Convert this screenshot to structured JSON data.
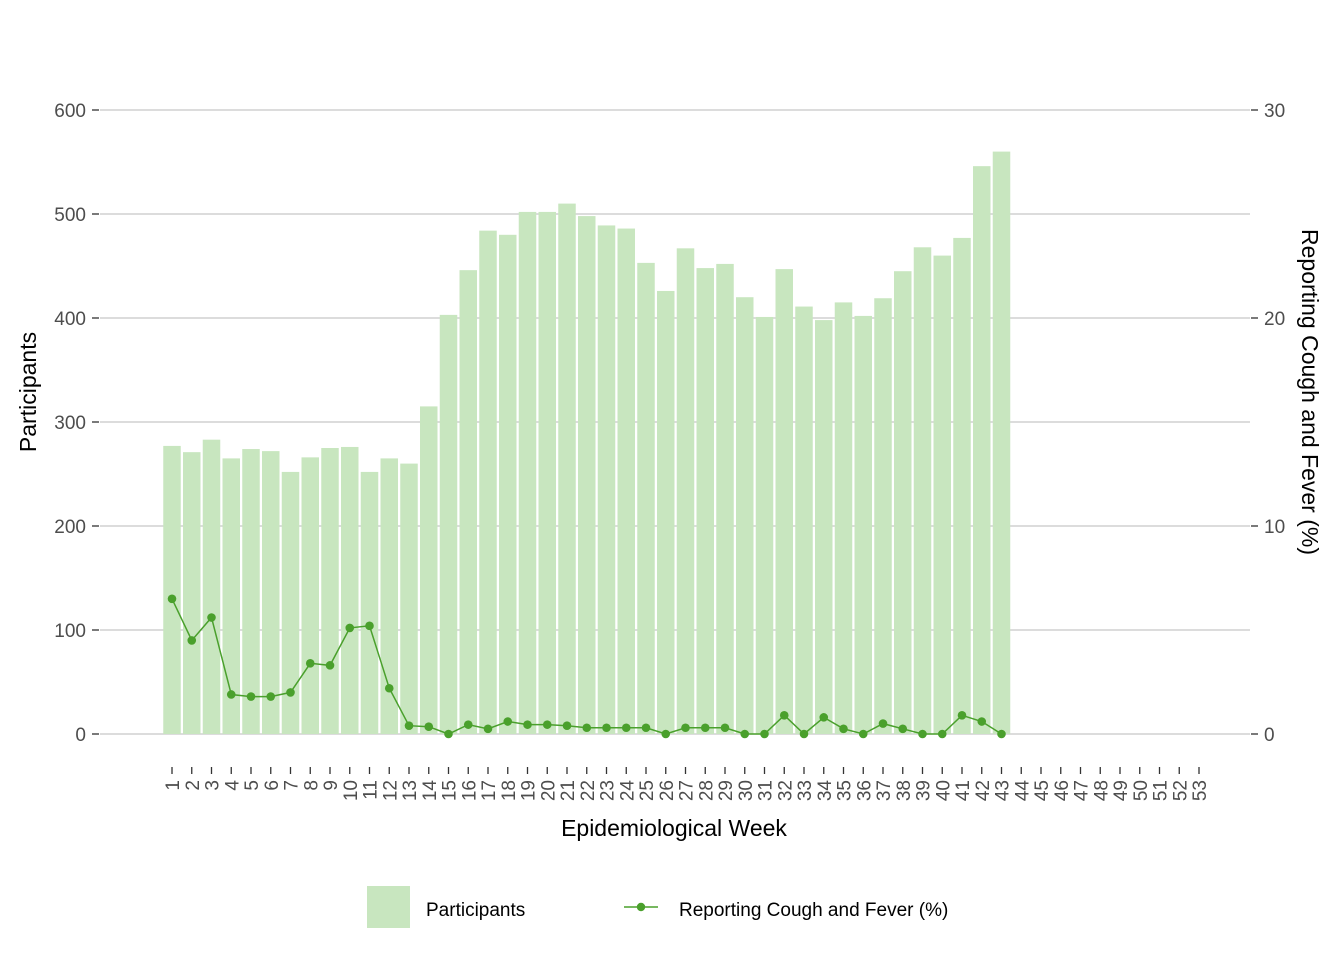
{
  "chart_data": {
    "type": "bar",
    "categories": [
      "1",
      "2",
      "3",
      "4",
      "5",
      "6",
      "7",
      "8",
      "9",
      "10",
      "11",
      "12",
      "13",
      "14",
      "15",
      "16",
      "17",
      "18",
      "19",
      "20",
      "21",
      "22",
      "23",
      "24",
      "25",
      "26",
      "27",
      "28",
      "29",
      "30",
      "31",
      "32",
      "33",
      "34",
      "35",
      "36",
      "37",
      "38",
      "39",
      "40",
      "41",
      "42",
      "43",
      "44",
      "45",
      "46",
      "47",
      "48",
      "49",
      "50",
      "51",
      "52",
      "53"
    ],
    "series": [
      {
        "name": "Participants",
        "type": "bar",
        "axis": "left",
        "color": "#c8e6bf",
        "values": [
          277,
          271,
          283,
          265,
          274,
          272,
          252,
          266,
          275,
          276,
          252,
          265,
          260,
          315,
          403,
          446,
          484,
          480,
          502,
          502,
          510,
          498,
          489,
          486,
          453,
          426,
          467,
          448,
          452,
          420,
          401,
          447,
          411,
          398,
          415,
          402,
          419,
          445,
          468,
          460,
          477,
          546,
          560,
          null,
          null,
          null,
          null,
          null,
          null,
          null,
          null,
          null,
          null
        ]
      },
      {
        "name": "Reporting Cough and Fever (%)",
        "type": "line",
        "axis": "right",
        "color": "#4aa02c",
        "values": [
          6.5,
          4.5,
          5.6,
          1.9,
          1.8,
          1.8,
          2.0,
          3.4,
          3.3,
          5.1,
          5.2,
          2.2,
          0.4,
          0.35,
          0.0,
          0.45,
          0.25,
          0.6,
          0.45,
          0.45,
          0.4,
          0.3,
          0.3,
          0.3,
          0.3,
          0.0,
          0.3,
          0.3,
          0.3,
          0.0,
          0.0,
          0.9,
          0.0,
          0.8,
          0.25,
          0.0,
          0.5,
          0.25,
          0.0,
          0.0,
          0.9,
          0.6,
          0.0,
          null,
          null,
          null,
          null,
          null,
          null,
          null,
          null,
          null,
          null
        ]
      }
    ],
    "xlabel": "Epidemiological Week",
    "ylabel": "Participants",
    "ylabel_right": "Reporting Cough and Fever (%)",
    "ylim": [
      0,
      600
    ],
    "ylim_right": [
      0,
      30
    ],
    "yticks": [
      0,
      100,
      200,
      300,
      400,
      500,
      600
    ],
    "yticks_right": [
      0,
      10,
      20,
      30
    ],
    "grid": "horizontal major",
    "legend": {
      "position": "bottom",
      "entries": [
        "Participants",
        "Reporting Cough and Fever (%)"
      ]
    }
  }
}
